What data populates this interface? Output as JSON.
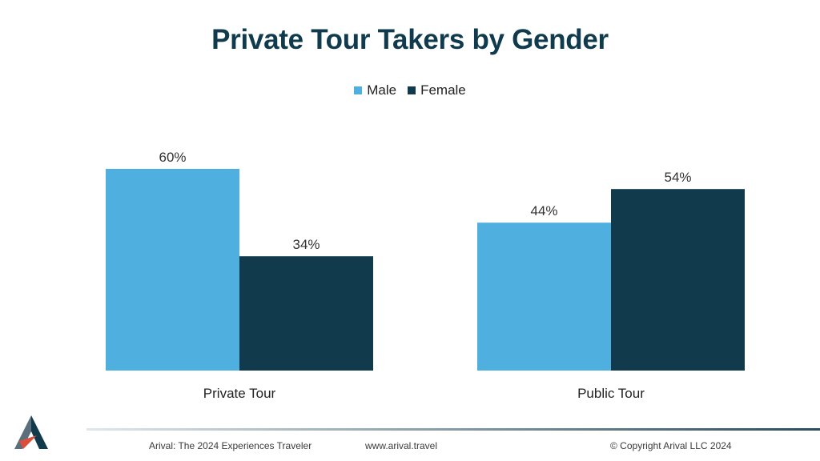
{
  "slide": {
    "footer_left": "Arival: The 2024 Experiences Traveler",
    "footer_center": "www.arival.travel",
    "footer_right": "© Copyright Arival LLC 2024"
  },
  "colors": {
    "male": "#4fb0e0",
    "female": "#113a4d",
    "title": "#103a4e"
  },
  "chart_data": {
    "type": "bar",
    "title": "Private Tour Takers by Gender",
    "categories": [
      "Private Tour",
      "Public Tour"
    ],
    "series": [
      {
        "name": "Male",
        "values": [
          60,
          44
        ],
        "labels": [
          "60%",
          "44%"
        ]
      },
      {
        "name": "Female",
        "values": [
          34,
          54
        ],
        "labels": [
          "34%",
          "54%"
        ]
      }
    ],
    "ylim": [
      0,
      75
    ],
    "grid": false,
    "legend_position": "top-center"
  }
}
